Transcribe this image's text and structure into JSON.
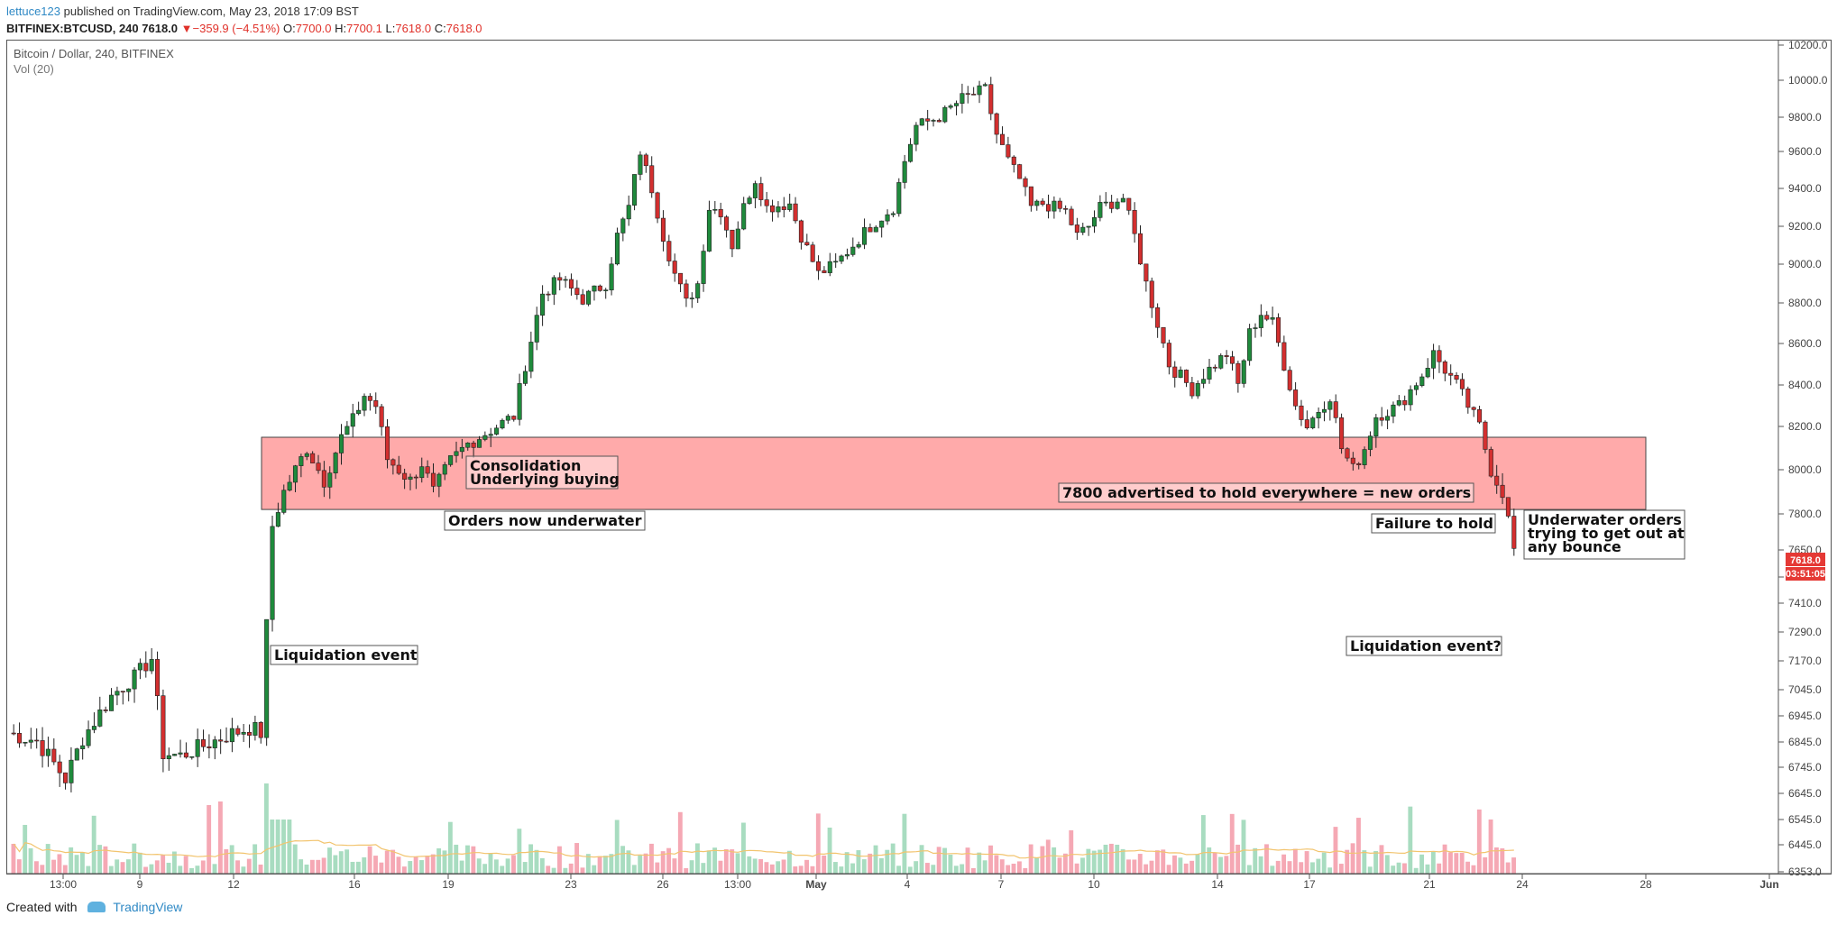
{
  "header": {
    "user": "lettuce123",
    "published_text": "published on TradingView.com, May 23, 2018 17:09 BST",
    "symbol": "BITFINEX:BTCUSD, 240",
    "last": "7618.0",
    "change": "−359.9 (−4.51%)",
    "open_label": "O:",
    "open": "7700.0",
    "high_label": "H:",
    "high": "7700.1",
    "low_label": "L:",
    "low": "7618.0",
    "close_label": "C:",
    "close": "7618.0"
  },
  "chart_title": "Bitcoin / Dollar, 240, BITFINEX",
  "chart_subtitle": "Vol (20)",
  "footer": {
    "created_with": "Created with",
    "brand": "TradingView"
  },
  "colors": {
    "up": "#1f8a3c",
    "down": "#d32f2f",
    "zone": "#ff9b9b",
    "vol_up": "#a8dcc0",
    "vol_down": "#f5a8b4",
    "ma": "#f2c46e",
    "price_tag": "#e53935"
  },
  "chart_data": {
    "type": "candlestick",
    "y_axis_labels": [
      "10200.0",
      "10000.0",
      "9800.0",
      "9600.0",
      "9400.0",
      "9200.0",
      "9000.0",
      "8800.0",
      "8600.0",
      "8400.0",
      "8200.0",
      "8000.0",
      "7800.0",
      "7650.0",
      "7530.0",
      "7410.0",
      "7290.0",
      "7170.0",
      "7045.0",
      "6945.0",
      "6845.0",
      "6745.0",
      "6645.0",
      "6545.0",
      "6445.0",
      "6353.0"
    ],
    "x_axis_labels": [
      "13:00",
      "9",
      "12",
      "16",
      "19",
      "23",
      "26",
      "13:00",
      "May",
      "4",
      "7",
      "10",
      "14",
      "17",
      "21",
      "24",
      "28",
      "Jun"
    ],
    "current_price": "7618.0",
    "countdown": "03:51:05",
    "resistance_zone": {
      "low": 7820,
      "high": 8150
    },
    "annotations": [
      "Consolidation\nUnderlying buying",
      "Orders now underwater",
      "Liquidation event",
      "7800 advertised to hold everywhere = new orders",
      "Failure to hold",
      "Underwater orders\ntrying to get out at\nany bounce",
      "Liquidation event?"
    ],
    "path_points": [
      [
        0,
        6880
      ],
      [
        5,
        6850
      ],
      [
        10,
        6700
      ],
      [
        13,
        6860
      ],
      [
        18,
        7020
      ],
      [
        22,
        7100
      ],
      [
        25,
        7180
      ],
      [
        27,
        6800
      ],
      [
        30,
        6790
      ],
      [
        34,
        6830
      ],
      [
        38,
        6870
      ],
      [
        42,
        6900
      ],
      [
        44,
        6880
      ],
      [
        46,
        7750
      ],
      [
        48,
        7900
      ],
      [
        52,
        8100
      ],
      [
        55,
        7950
      ],
      [
        58,
        8150
      ],
      [
        60,
        8230
      ],
      [
        62,
        8350
      ],
      [
        64,
        8300
      ],
      [
        66,
        8050
      ],
      [
        70,
        7950
      ],
      [
        72,
        8030
      ],
      [
        74,
        7900
      ],
      [
        77,
        8040
      ],
      [
        80,
        8120
      ],
      [
        85,
        8200
      ],
      [
        88,
        8250
      ],
      [
        90,
        8500
      ],
      [
        93,
        8850
      ],
      [
        96,
        8920
      ],
      [
        100,
        8820
      ],
      [
        104,
        8900
      ],
      [
        106,
        9150
      ],
      [
        108,
        9300
      ],
      [
        110,
        9600
      ],
      [
        112,
        9400
      ],
      [
        114,
        9150
      ],
      [
        116,
        8950
      ],
      [
        118,
        8800
      ],
      [
        120,
        8900
      ],
      [
        122,
        9300
      ],
      [
        124,
        9280
      ],
      [
        126,
        9100
      ],
      [
        128,
        9300
      ],
      [
        130,
        9450
      ],
      [
        132,
        9300
      ],
      [
        136,
        9320
      ],
      [
        138,
        9150
      ],
      [
        141,
        8950
      ],
      [
        144,
        9000
      ],
      [
        147,
        9100
      ],
      [
        150,
        9200
      ],
      [
        154,
        9300
      ],
      [
        156,
        9550
      ],
      [
        158,
        9750
      ],
      [
        162,
        9800
      ],
      [
        164,
        9850
      ],
      [
        166,
        9900
      ],
      [
        170,
        9950
      ],
      [
        172,
        9700
      ],
      [
        174,
        9550
      ],
      [
        176,
        9450
      ],
      [
        178,
        9300
      ],
      [
        180,
        9320
      ],
      [
        184,
        9280
      ],
      [
        186,
        9150
      ],
      [
        188,
        9200
      ],
      [
        190,
        9300
      ],
      [
        194,
        9350
      ],
      [
        196,
        9150
      ],
      [
        198,
        8900
      ],
      [
        200,
        8700
      ],
      [
        202,
        8500
      ],
      [
        206,
        8380
      ],
      [
        208,
        8450
      ],
      [
        210,
        8500
      ],
      [
        212,
        8550
      ],
      [
        214,
        8400
      ],
      [
        216,
        8650
      ],
      [
        218,
        8750
      ],
      [
        220,
        8700
      ],
      [
        222,
        8500
      ],
      [
        224,
        8300
      ],
      [
        226,
        8200
      ],
      [
        228,
        8280
      ],
      [
        230,
        8350
      ],
      [
        232,
        8100
      ],
      [
        234,
        8000
      ],
      [
        236,
        8100
      ],
      [
        238,
        8250
      ],
      [
        242,
        8300
      ],
      [
        246,
        8450
      ],
      [
        248,
        8550
      ],
      [
        252,
        8400
      ],
      [
        254,
        8300
      ],
      [
        256,
        8200
      ],
      [
        258,
        8000
      ],
      [
        260,
        7900
      ],
      [
        262,
        7650
      ]
    ],
    "n_points": 262
  }
}
